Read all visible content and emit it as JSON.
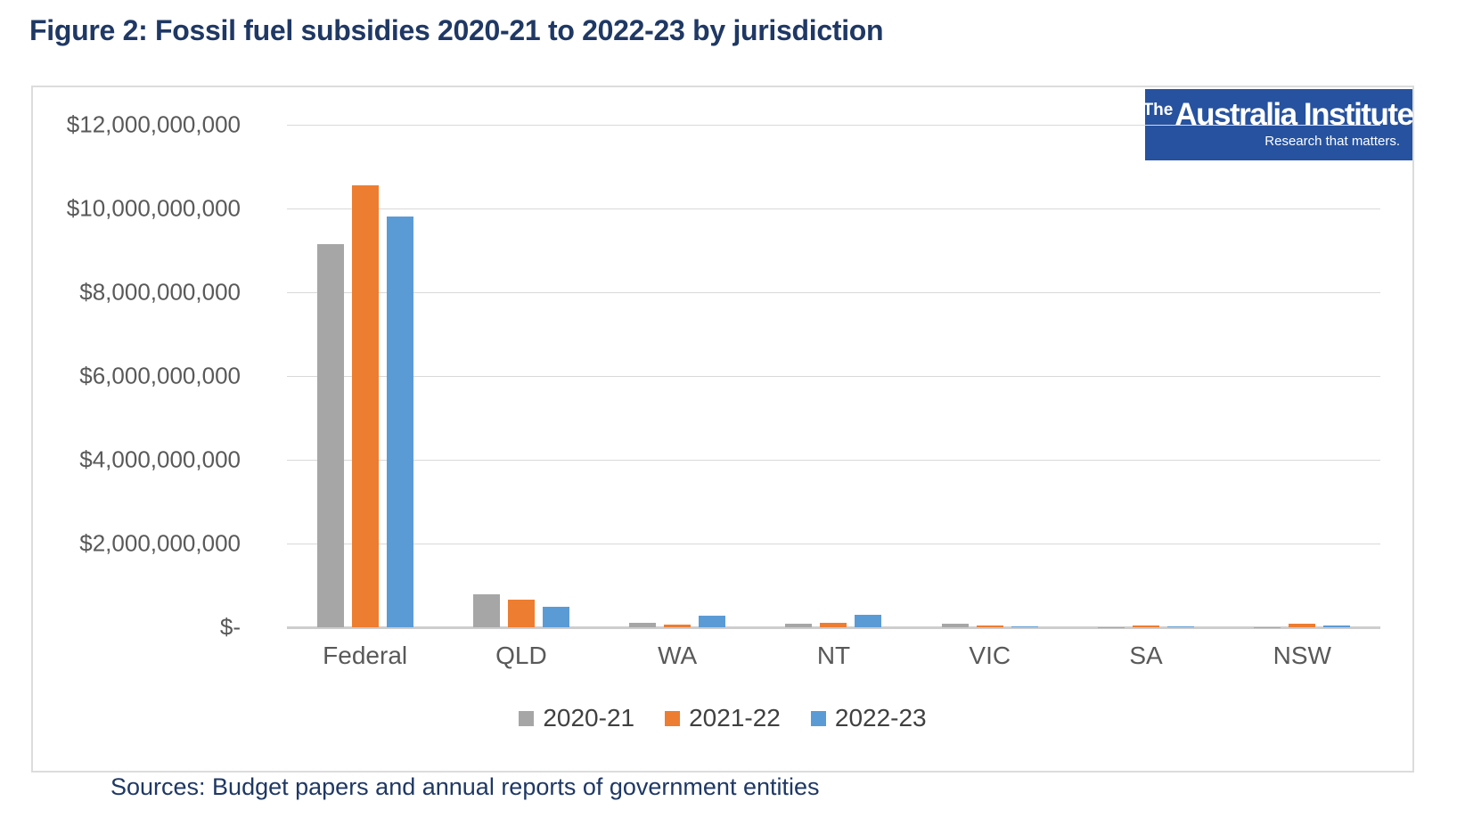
{
  "figure_title": "Figure 2: Fossil fuel subsidies 2020-21 to 2022-23 by jurisdiction",
  "sources_note": "Sources: Budget papers and annual reports of government entities",
  "logo": {
    "prefix": "The",
    "name": "Australia Institute",
    "tagline": "Research that matters.",
    "bg_color": "#26529F",
    "text_color": "#FFFFFF"
  },
  "colors": {
    "title_text": "#1F3864",
    "sources_text": "#1F3864",
    "axis_text": "#595959",
    "legend_text": "#404040",
    "gridline": "#D9D9D9",
    "axis_line": "#CDCDCD",
    "chart_border": "#DCDCDC"
  },
  "chart_data": {
    "type": "bar",
    "title": "Figure 2: Fossil fuel subsidies 2020-21 to 2022-23 by jurisdiction",
    "xlabel": "",
    "ylabel": "",
    "unit": "AUD",
    "grid": true,
    "legend_position": "bottom",
    "categories": [
      "Federal",
      "QLD",
      "WA",
      "NT",
      "VIC",
      "SA",
      "NSW"
    ],
    "series": [
      {
        "name": "2020-21",
        "color": "#A6A6A6",
        "values": [
          9150000000,
          790000000,
          110000000,
          80000000,
          80000000,
          10000000,
          10000000
        ]
      },
      {
        "name": "2021-22",
        "color": "#ED7D31",
        "values": [
          10550000000,
          650000000,
          70000000,
          110000000,
          40000000,
          40000000,
          80000000
        ]
      },
      {
        "name": "2022-23",
        "color": "#5B9BD5",
        "values": [
          9800000000,
          500000000,
          280000000,
          290000000,
          30000000,
          30000000,
          40000000
        ]
      }
    ],
    "ylim": [
      0,
      12000000000
    ],
    "yticks": [
      {
        "value": 12000000000,
        "label": "$12,000,000,000"
      },
      {
        "value": 10000000000,
        "label": "$10,000,000,000"
      },
      {
        "value": 8000000000,
        "label": "$8,000,000,000"
      },
      {
        "value": 6000000000,
        "label": "$6,000,000,000"
      },
      {
        "value": 4000000000,
        "label": "$4,000,000,000"
      },
      {
        "value": 2000000000,
        "label": "$2,000,000,000"
      },
      {
        "value": 0,
        "label": "$-"
      }
    ]
  }
}
